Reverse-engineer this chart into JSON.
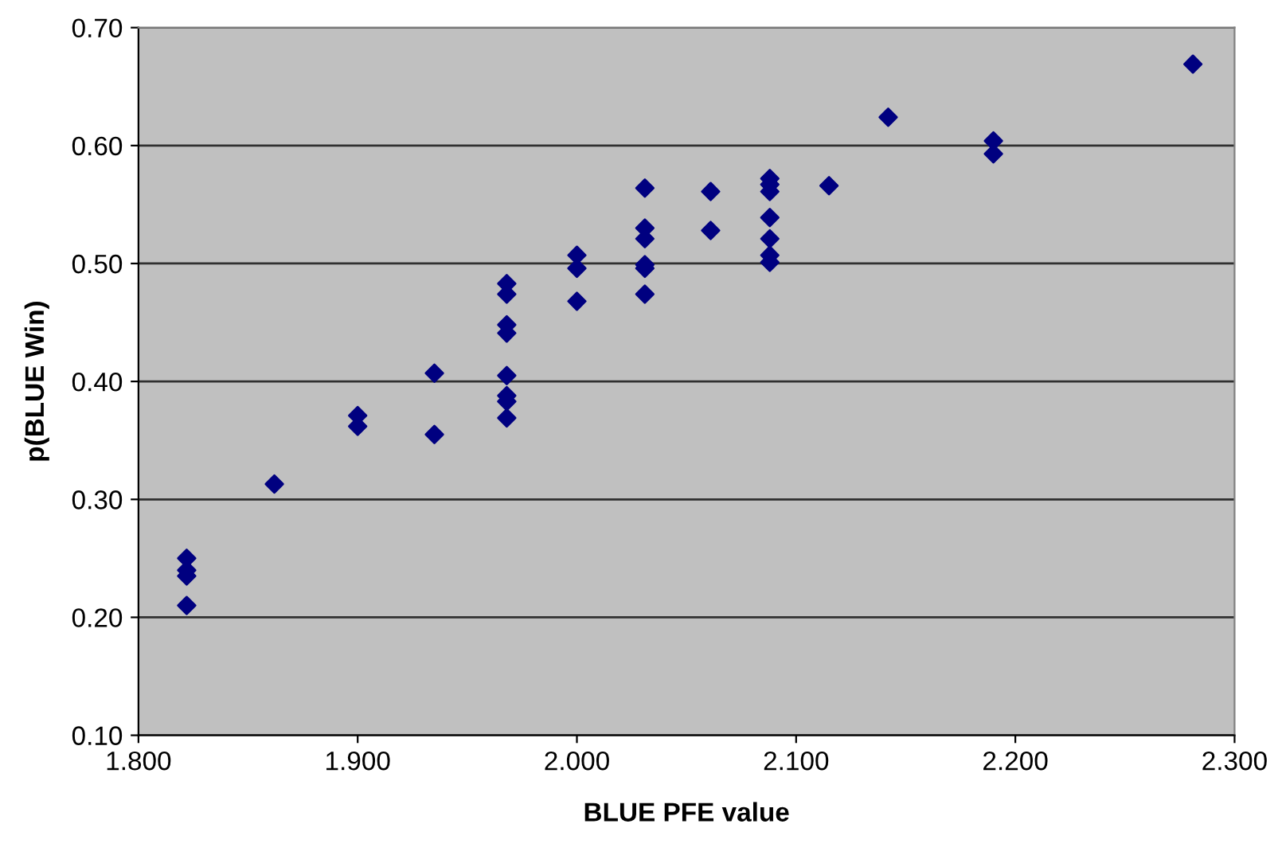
{
  "chart_data": {
    "type": "scatter",
    "xlabel": "BLUE PFE value",
    "ylabel": "p(BLUE Win)",
    "x": [
      1.822,
      1.822,
      1.822,
      1.822,
      1.862,
      1.9,
      1.9,
      1.935,
      1.935,
      1.968,
      1.968,
      1.968,
      1.968,
      1.968,
      1.968,
      1.968,
      1.968,
      2.0,
      2.0,
      2.0,
      2.031,
      2.031,
      2.031,
      2.031,
      2.031,
      2.031,
      2.061,
      2.061,
      2.088,
      2.088,
      2.088,
      2.088,
      2.088,
      2.088,
      2.088,
      2.115,
      2.142,
      2.19,
      2.19,
      2.281
    ],
    "series": [
      {
        "color": "#000080",
        "values": [
          0.25,
          0.24,
          0.235,
          0.21,
          0.313,
          0.371,
          0.362,
          0.407,
          0.355,
          0.483,
          0.474,
          0.448,
          0.441,
          0.405,
          0.388,
          0.383,
          0.369,
          0.507,
          0.496,
          0.468,
          0.564,
          0.53,
          0.521,
          0.499,
          0.496,
          0.474,
          0.561,
          0.528,
          0.572,
          0.567,
          0.561,
          0.539,
          0.521,
          0.507,
          0.501,
          0.566,
          0.624,
          0.604,
          0.593,
          0.669
        ]
      }
    ],
    "xlim": [
      1.8,
      2.3
    ],
    "xticks": [
      {
        "value": 1.8,
        "label": "1.800"
      },
      {
        "value": 1.9,
        "label": "1.900"
      },
      {
        "value": 2.0,
        "label": "2.000"
      },
      {
        "value": 2.1,
        "label": "2.100"
      },
      {
        "value": 2.2,
        "label": "2.200"
      },
      {
        "value": 2.3,
        "label": "2.300"
      }
    ],
    "ylim": [
      0.1,
      0.7
    ],
    "yticks": [
      {
        "value": 0.1,
        "label": "0.10"
      },
      {
        "value": 0.2,
        "label": "0.20"
      },
      {
        "value": 0.3,
        "label": "0.30"
      },
      {
        "value": 0.4,
        "label": "0.40"
      },
      {
        "value": 0.5,
        "label": "0.50"
      },
      {
        "value": 0.6,
        "label": "0.60"
      },
      {
        "value": 0.7,
        "label": "0.70"
      }
    ],
    "grid": "y",
    "marker": "diamond"
  }
}
